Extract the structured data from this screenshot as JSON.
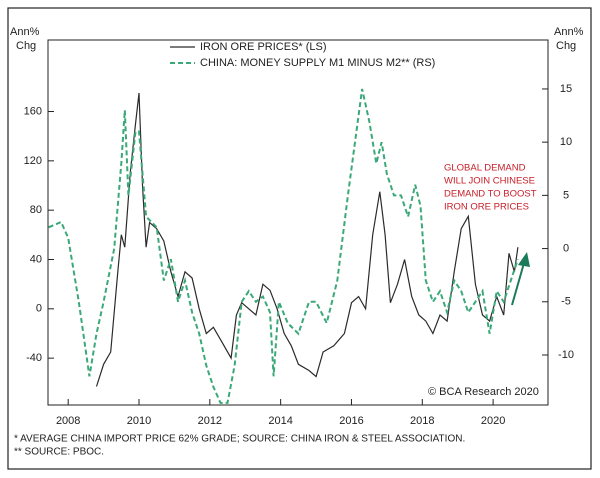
{
  "chart_data": {
    "type": "line",
    "legend": "top",
    "y_label": [
      "Ann%",
      "Chg"
    ],
    "y2_label": [
      "Ann%",
      "Chg"
    ],
    "annotation": [
      "GLOBAL DEMAND",
      "WILL JOIN CHINESE",
      "DEMAND TO BOOST",
      "IRON ORE PRICES"
    ],
    "source": "© BCA Research 2020",
    "footnotes": [
      "* AVERAGE CHINA IMPORT PRICE 62% GRADE; SOURCE: CHINA IRON & STEEL ASSOCIATION.",
      "** SOURCE: PBOC."
    ],
    "xlim": [
      2007.43,
      2021.55
    ],
    "xticks": [
      2008,
      2010,
      2012,
      2014,
      2016,
      2018,
      2020
    ],
    "ylim": [
      -78,
      218
    ],
    "yticks": [
      -40,
      0,
      40,
      80,
      120,
      160
    ],
    "y2lim": [
      -14.7,
      19.6
    ],
    "y2ticks": [
      -10,
      -5,
      0,
      5,
      10,
      15
    ],
    "series": [
      {
        "name": "IRON ORE PRICES* (LS)",
        "color": "#2b2b2b",
        "dash": false,
        "axis": "y",
        "x": [
          2008.8,
          2009.0,
          2009.2,
          2009.4,
          2009.5,
          2009.6,
          2009.75,
          2009.9,
          2010.0,
          2010.1,
          2010.2,
          2010.3,
          2010.5,
          2010.7,
          2010.9,
          2011.1,
          2011.3,
          2011.5,
          2011.7,
          2011.9,
          2012.1,
          2012.3,
          2012.6,
          2012.75,
          2012.9,
          2013.1,
          2013.3,
          2013.5,
          2013.7,
          2013.9,
          2014.1,
          2014.3,
          2014.5,
          2014.8,
          2015.0,
          2015.2,
          2015.5,
          2015.8,
          2016.0,
          2016.2,
          2016.4,
          2016.6,
          2016.8,
          2016.95,
          2017.1,
          2017.3,
          2017.5,
          2017.7,
          2017.9,
          2018.1,
          2018.3,
          2018.5,
          2018.7,
          2018.9,
          2019.1,
          2019.3,
          2019.5,
          2019.7,
          2019.9,
          2020.1,
          2020.3,
          2020.45,
          2020.6,
          2020.7
        ],
        "values": [
          -63,
          -45,
          -35,
          30,
          60,
          50,
          110,
          150,
          175,
          100,
          50,
          70,
          65,
          55,
          30,
          10,
          30,
          25,
          0,
          -20,
          -15,
          -25,
          -40,
          -5,
          5,
          0,
          -5,
          20,
          15,
          0,
          -20,
          -30,
          -45,
          -50,
          -55,
          -35,
          -30,
          -20,
          5,
          10,
          0,
          60,
          95,
          60,
          5,
          20,
          40,
          10,
          -5,
          -10,
          -20,
          -5,
          -10,
          30,
          65,
          75,
          20,
          -5,
          -10,
          10,
          -5,
          45,
          30,
          50
        ]
      },
      {
        "name": "CHINA: MONEY SUPPLY M1 MINUS M2** (RS)",
        "color": "#3aa878",
        "dash": true,
        "axis": "y2",
        "x": [
          2007.45,
          2007.8,
          2008.0,
          2008.3,
          2008.6,
          2008.8,
          2009.0,
          2009.3,
          2009.5,
          2009.6,
          2009.7,
          2009.9,
          2010.0,
          2010.2,
          2010.5,
          2010.7,
          2010.9,
          2011.1,
          2011.3,
          2011.5,
          2011.7,
          2011.9,
          2012.1,
          2012.3,
          2012.5,
          2012.7,
          2012.9,
          2013.1,
          2013.3,
          2013.5,
          2013.7,
          2013.8,
          2013.95,
          2014.2,
          2014.5,
          2014.8,
          2015.0,
          2015.3,
          2015.6,
          2015.9,
          2016.1,
          2016.3,
          2016.5,
          2016.7,
          2016.85,
          2017.0,
          2017.2,
          2017.4,
          2017.6,
          2017.8,
          2017.95,
          2018.1,
          2018.3,
          2018.5,
          2018.7,
          2018.9,
          2019.1,
          2019.3,
          2019.5,
          2019.7,
          2019.9,
          2020.1,
          2020.3,
          2020.5,
          2020.7
        ],
        "values": [
          2,
          2.5,
          1,
          -5,
          -12,
          -8,
          -5,
          0,
          8,
          13,
          5,
          11,
          11,
          3,
          2,
          -3,
          -1,
          -5,
          -3,
          -6,
          -8,
          -11,
          -13,
          -14.5,
          -14.5,
          -11,
          -5,
          -4,
          -5,
          -4.5,
          -6,
          -12,
          -5,
          -7,
          -8,
          -5,
          -5,
          -7,
          -3,
          5,
          10,
          15,
          12,
          8,
          10,
          7,
          5,
          5,
          3,
          6,
          4,
          -3,
          -5,
          -4,
          -6,
          -3,
          -4,
          -6,
          -5,
          -4,
          -8,
          -4,
          -5,
          -3,
          -1
        ]
      }
    ]
  }
}
